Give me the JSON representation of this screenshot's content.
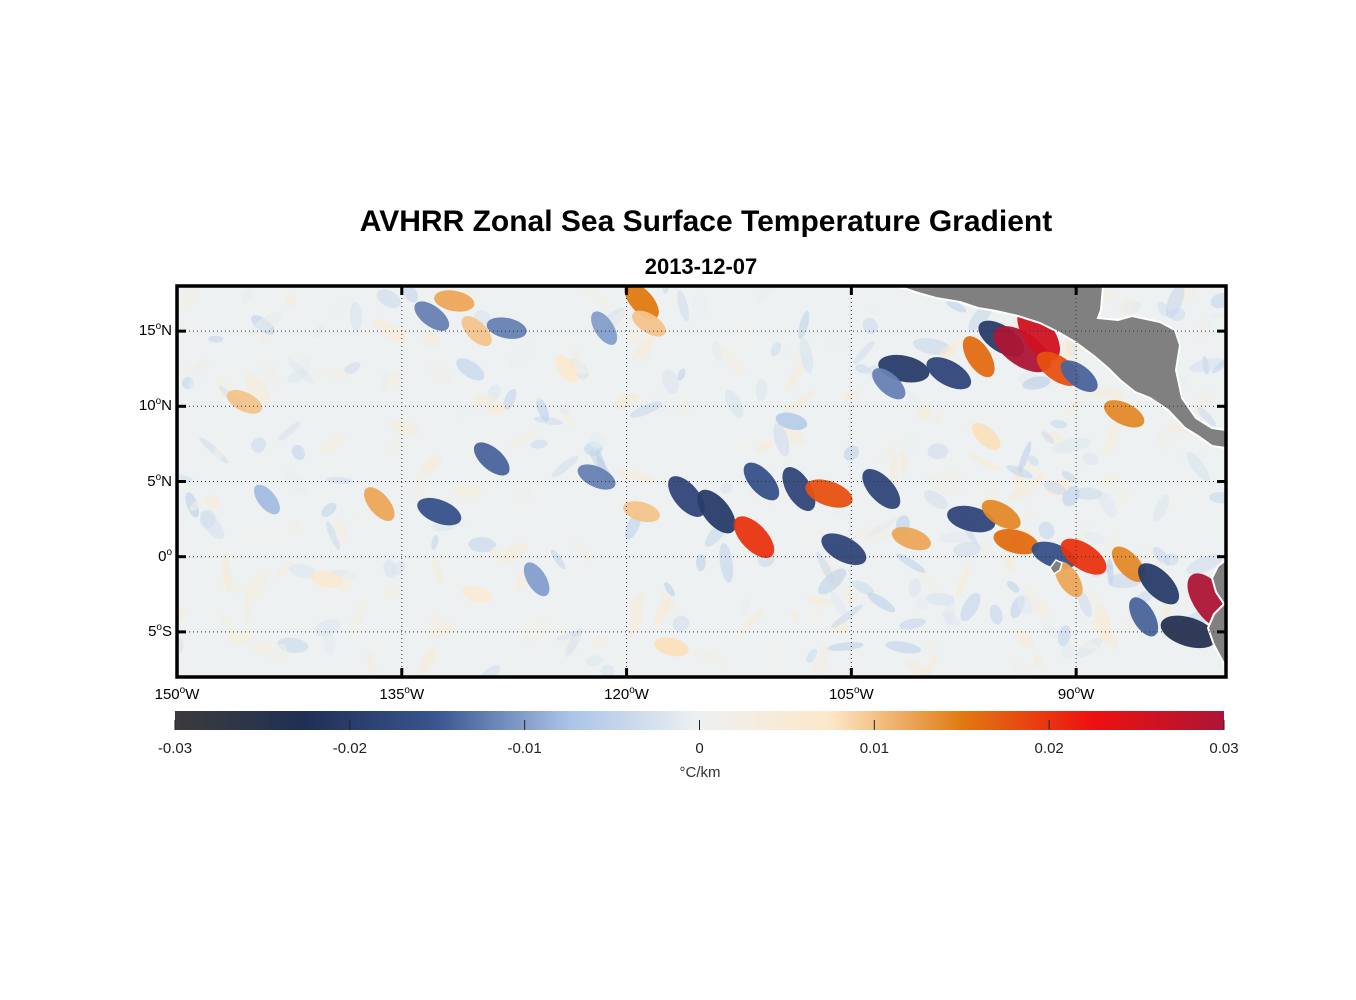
{
  "title": "AVHRR Zonal Sea Surface Temperature Gradient",
  "subtitle": "2013-12-07",
  "map": {
    "lon_range": [
      -150,
      -80
    ],
    "lat_range": [
      -8,
      18
    ],
    "lat_ticks": [
      {
        "value": 15,
        "num": "15",
        "hemi": "N"
      },
      {
        "value": 10,
        "num": "10",
        "hemi": "N"
      },
      {
        "value": 5,
        "num": "5",
        "hemi": "N"
      },
      {
        "value": 0,
        "num": "0",
        "hemi": ""
      },
      {
        "value": -5,
        "num": "5",
        "hemi": "S"
      }
    ],
    "lon_ticks": [
      {
        "value": -150,
        "num": "150",
        "hemi": "W"
      },
      {
        "value": -135,
        "num": "135",
        "hemi": "W"
      },
      {
        "value": -120,
        "num": "120",
        "hemi": "W"
      },
      {
        "value": -105,
        "num": "105",
        "hemi": "W"
      },
      {
        "value": -90,
        "num": "90",
        "hemi": "W"
      }
    ],
    "grid": true,
    "land_color": "#808080",
    "features": [
      {
        "lon": -131.5,
        "lat": 17.0,
        "v": 0.012
      },
      {
        "lon": -133.0,
        "lat": 16.0,
        "v": -0.012
      },
      {
        "lon": -130.0,
        "lat": 15.0,
        "v": 0.01
      },
      {
        "lon": -128.0,
        "lat": 15.2,
        "v": -0.012
      },
      {
        "lon": -119.0,
        "lat": 17.0,
        "v": 0.015
      },
      {
        "lon": -118.5,
        "lat": 15.5,
        "v": 0.01
      },
      {
        "lon": -121.5,
        "lat": 15.2,
        "v": -0.01
      },
      {
        "lon": -101.5,
        "lat": 12.5,
        "v": -0.02
      },
      {
        "lon": -98.5,
        "lat": 12.2,
        "v": -0.018
      },
      {
        "lon": -96.5,
        "lat": 13.3,
        "v": 0.016
      },
      {
        "lon": -95.0,
        "lat": 14.5,
        "v": -0.02
      },
      {
        "lon": -93.6,
        "lat": 13.8,
        "v": 0.03
      },
      {
        "lon": -92.5,
        "lat": 14.8,
        "v": 0.026
      },
      {
        "lon": -91.2,
        "lat": 12.5,
        "v": 0.018
      },
      {
        "lon": -89.8,
        "lat": 12.0,
        "v": -0.014
      },
      {
        "lon": -86.8,
        "lat": 9.5,
        "v": 0.014
      },
      {
        "lon": -102.5,
        "lat": 11.5,
        "v": -0.012
      },
      {
        "lon": -145.5,
        "lat": 10.3,
        "v": 0.01
      },
      {
        "lon": -136.5,
        "lat": 3.5,
        "v": 0.012
      },
      {
        "lon": -132.5,
        "lat": 3.0,
        "v": -0.016
      },
      {
        "lon": -129.0,
        "lat": 6.5,
        "v": -0.014
      },
      {
        "lon": -122.0,
        "lat": 5.3,
        "v": -0.012
      },
      {
        "lon": -119.0,
        "lat": 3.0,
        "v": 0.01
      },
      {
        "lon": -116.0,
        "lat": 4.0,
        "v": -0.018
      },
      {
        "lon": -114.0,
        "lat": 3.0,
        "v": -0.02
      },
      {
        "lon": -111.5,
        "lat": 1.3,
        "v": 0.02
      },
      {
        "lon": -111.0,
        "lat": 5.0,
        "v": -0.016
      },
      {
        "lon": -108.5,
        "lat": 4.5,
        "v": -0.018
      },
      {
        "lon": -106.5,
        "lat": 4.2,
        "v": 0.018
      },
      {
        "lon": -105.5,
        "lat": 0.5,
        "v": -0.018
      },
      {
        "lon": -103.0,
        "lat": 4.5,
        "v": -0.018
      },
      {
        "lon": -101.0,
        "lat": 1.2,
        "v": 0.012
      },
      {
        "lon": -97.0,
        "lat": 2.5,
        "v": -0.018
      },
      {
        "lon": -95.0,
        "lat": 2.8,
        "v": 0.014
      },
      {
        "lon": -94.0,
        "lat": 1.0,
        "v": 0.016
      },
      {
        "lon": -91.5,
        "lat": 0.1,
        "v": -0.016
      },
      {
        "lon": -89.5,
        "lat": 0.0,
        "v": 0.02
      },
      {
        "lon": -90.5,
        "lat": -1.5,
        "v": 0.012
      },
      {
        "lon": -86.5,
        "lat": -0.5,
        "v": 0.014
      },
      {
        "lon": -84.5,
        "lat": -1.8,
        "v": -0.02
      },
      {
        "lon": -82.5,
        "lat": -5.0,
        "v": -0.024
      },
      {
        "lon": -81.0,
        "lat": -3.0,
        "v": 0.03
      },
      {
        "lon": -85.5,
        "lat": -4.0,
        "v": -0.014
      },
      {
        "lon": -144.0,
        "lat": 3.8,
        "v": -0.008
      },
      {
        "lon": -124.0,
        "lat": 12.5,
        "v": 0.006
      },
      {
        "lon": -140.0,
        "lat": -1.5,
        "v": 0.006
      },
      {
        "lon": -126.0,
        "lat": -1.5,
        "v": -0.01
      },
      {
        "lon": -130.0,
        "lat": -2.5,
        "v": 0.005
      },
      {
        "lon": -117.0,
        "lat": -6.0,
        "v": 0.008
      },
      {
        "lon": -96.0,
        "lat": 8.0,
        "v": 0.008
      },
      {
        "lon": -109.0,
        "lat": 9.0,
        "v": -0.006
      }
    ]
  },
  "colorbar": {
    "min": -0.03,
    "max": 0.03,
    "ticks": [
      "-0.03",
      "-0.02",
      "-0.01",
      "0",
      "0.01",
      "0.02",
      "0.03"
    ],
    "unit": "°C/km",
    "colors": {
      "stops": [
        "#3b3b3b",
        "#1f3056",
        "#3a5590",
        "#a9c3e8",
        "#eef1f1",
        "#fde7c8",
        "#e07a10",
        "#ee1010",
        "#ad1535"
      ]
    }
  }
}
